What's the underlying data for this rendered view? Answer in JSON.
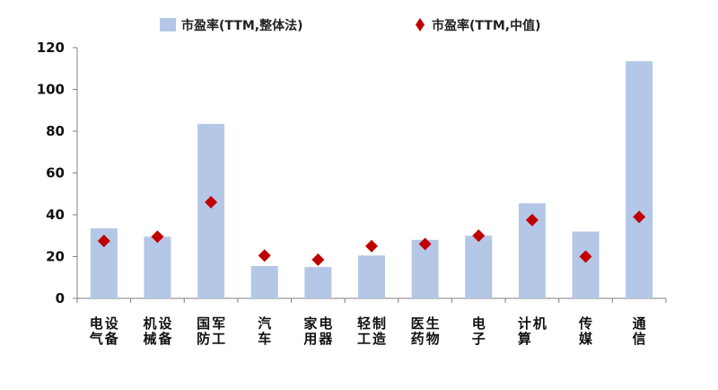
{
  "chart_data": {
    "type": "bar",
    "categories": [
      [
        "电气",
        "设备"
      ],
      [
        "机械",
        "设备"
      ],
      [
        "国防",
        "军工"
      ],
      [
        "汽车"
      ],
      [
        "家用",
        "电器"
      ],
      [
        "轻工",
        "制造"
      ],
      [
        "医药",
        "生物"
      ],
      [
        "电子"
      ],
      [
        "计算",
        "机"
      ],
      [
        "传媒"
      ],
      [
        "通信"
      ]
    ],
    "series": [
      {
        "name": "市盈率(TTM,整体法)",
        "kind": "bar",
        "color": "#b4c7e7",
        "values": [
          33.5,
          29.5,
          83.5,
          15.5,
          15,
          20.5,
          28,
          30,
          45.5,
          32,
          113.5
        ]
      },
      {
        "name": "市盈率(TTM,中值)",
        "kind": "marker",
        "color": "#c00000",
        "values": [
          27.5,
          29.5,
          46,
          20.5,
          18.5,
          25,
          26,
          30,
          37.5,
          20,
          39
        ]
      }
    ],
    "ylim": [
      0,
      120
    ],
    "yticks": [
      0,
      20,
      40,
      60,
      80,
      100,
      120
    ],
    "xlabel": "",
    "ylabel": "",
    "title": "",
    "grid": false,
    "legend_position": "top"
  }
}
